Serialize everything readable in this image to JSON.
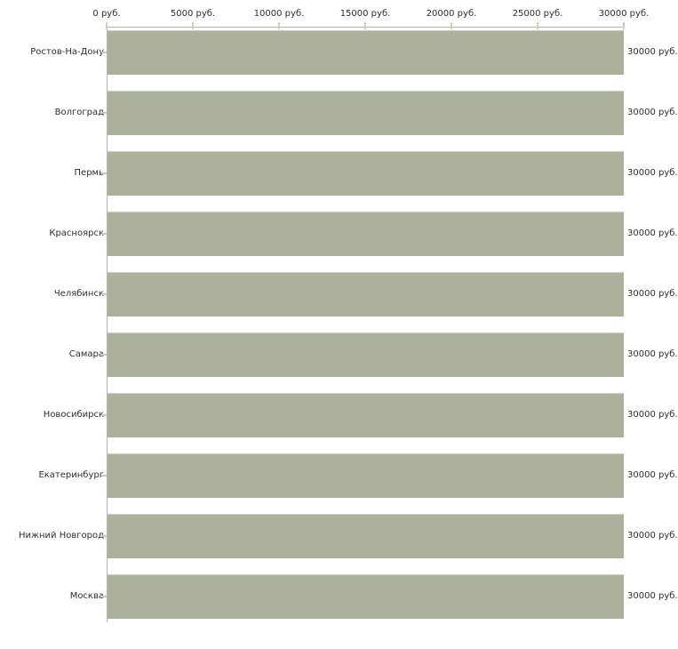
{
  "chart_data": {
    "type": "bar",
    "orientation": "horizontal",
    "title": "",
    "categories": [
      "Ростов-На-Дону",
      "Волгоград",
      "Пермь",
      "Красноярск",
      "Челябинск",
      "Самара",
      "Новосибирск",
      "Екатеринбург",
      "Нижний Новгород",
      "Москва"
    ],
    "values": [
      30000,
      30000,
      30000,
      30000,
      30000,
      30000,
      30000,
      30000,
      30000,
      30000
    ],
    "bar_labels": [
      "30000 руб.",
      "30000 руб.",
      "30000 руб.",
      "30000 руб.",
      "30000 руб.",
      "30000 руб.",
      "30000 руб.",
      "30000 руб.",
      "30000 руб.",
      "30000 руб."
    ],
    "x_ticks": [
      "0 руб.",
      "5000 руб.",
      "10000 руб.",
      "15000 руб.",
      "20000 руб.",
      "25000 руб.",
      "30000 руб."
    ],
    "x_tick_values": [
      0,
      5000,
      10000,
      15000,
      20000,
      25000,
      30000
    ],
    "xlim": [
      0,
      30000
    ],
    "xlabel": "",
    "ylabel": "",
    "grid": false,
    "legend": false,
    "colors": {
      "bar": "#abb19b",
      "bar_top_edge": "#cbcfb6",
      "axis": "#b3b3b3",
      "tick": "#cdd0b5",
      "text": "#2d2d2d",
      "background": "#ffffff"
    }
  }
}
